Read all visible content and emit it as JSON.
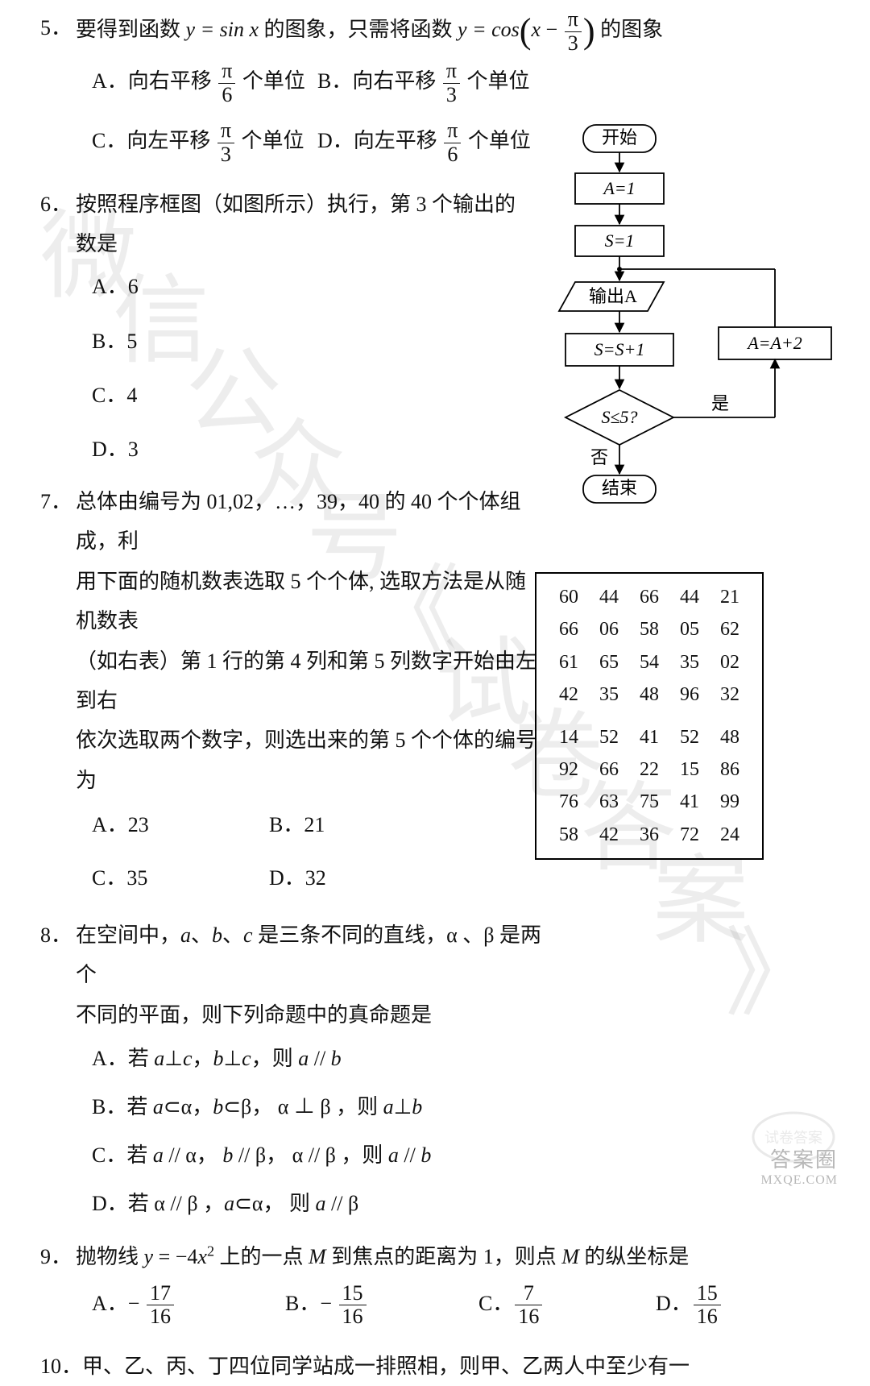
{
  "q5": {
    "num": "5．",
    "stem_a": "要得到函数 ",
    "stem_b": " 的图象，只需将函数 ",
    "stem_c": " 的图象",
    "eq1_a": "y",
    "eq1_b": " = sin ",
    "eq1_c": "x",
    "eq2_a": "y",
    "eq2_b": " = cos",
    "eq2_x": "x",
    "eq2_minus": " − ",
    "pi": "π",
    "three": "3",
    "six": "6",
    "A_pre": "A．向右平移 ",
    "A_post": " 个单位",
    "B_pre": "B．向右平移 ",
    "B_post": " 个单位",
    "C_pre": "C．向左平移 ",
    "C_post": " 个单位",
    "D_pre": "D．向左平移 ",
    "D_post": " 个单位"
  },
  "q6": {
    "num": "6．",
    "stem": "按照程序框图（如图所示）执行，第 3 个输出的数是",
    "A": "A．6",
    "B": "B．5",
    "C": "C．4",
    "D": "D．3"
  },
  "q7": {
    "num": "7．",
    "l1": "总体由编号为 01,02，…，39，40 的 40 个个体组成，利",
    "l2": "用下面的随机数表选取 5 个个体, 选取方法是从随机数表",
    "l3": "（如右表）第 1 行的第 4 列和第 5 列数字开始由左到右",
    "l4": "依次选取两个数字，则选出来的第 5 个个体的编号为",
    "A": "A．23",
    "B": "B．21",
    "C": "C．35",
    "D": "D．32"
  },
  "q8": {
    "num": "8．",
    "l1_a": "在空间中，",
    "l1_b": "、",
    "l1_c": "、",
    "l1_d": " 是三条不同的直线，α 、β 是两个",
    "a": "a",
    "b": "b",
    "c": "c",
    "l2": "不同的平面，则下列命题中的真命题是",
    "A_a": "A．若 ",
    "A_b": "⊥",
    "A_c": "，",
    "A_d": "⊥",
    "A_e": "，则 ",
    "A_f": " // ",
    "B_a": "B．若 ",
    "B_b": "⊂α，",
    "B_c": "⊂β， α ⊥ β ，则 ",
    "B_d": "⊥",
    "C_a": "C．若 ",
    "C_b": " // α， ",
    "C_c": " // β， α // β ，则 ",
    "C_d": " // ",
    "D_a": "D．若 α // β ，",
    "D_b": "⊂α， 则 ",
    "D_c": " // β"
  },
  "q9": {
    "num": "9．",
    "stem_a": "抛物线 ",
    "stem_b": " 上的一点 ",
    "stem_c": " 到焦点的距离为 1，则点 ",
    "stem_d": " 的纵坐标是",
    "y": "y",
    "eq": " = −4",
    "x": "x",
    "sq": "2",
    "M": "M",
    "A": "A．",
    "B": "B．",
    "C": "C．",
    "D": "D．",
    "n17": "17",
    "n15": "15",
    "n7": "7",
    "n16": "16",
    "neg": "− "
  },
  "q10": {
    "num": "10．",
    "stem": "甲、乙、丙、丁四位同学站成一排照相，则甲、乙两人中至少有一"
  },
  "flow": {
    "start": "开始",
    "a1": "A=1",
    "s1": "S=1",
    "out": "输出A",
    "ss1": "S=S+1",
    "aa2": "A=A+2",
    "cond": "S≤5?",
    "yes": "是",
    "no": "否",
    "end": "结束",
    "stroke": "#000000",
    "fill": "#ffffff",
    "font": "22"
  },
  "table": {
    "rows_top": [
      [
        "60",
        "44",
        "66",
        "44",
        "21"
      ],
      [
        "66",
        "06",
        "58",
        "05",
        "62"
      ],
      [
        "61",
        "65",
        "54",
        "35",
        "02"
      ],
      [
        "42",
        "35",
        "48",
        "96",
        "32"
      ]
    ],
    "rows_bot": [
      [
        "14",
        "52",
        "41",
        "52",
        "48"
      ],
      [
        "92",
        "66",
        "22",
        "15",
        "86"
      ],
      [
        "76",
        "63",
        "75",
        "41",
        "99"
      ],
      [
        "58",
        "42",
        "36",
        "72",
        "24"
      ]
    ]
  },
  "watermarks": {
    "a": "微",
    "b": "信",
    "c": "公",
    "d": "众",
    "e": "号",
    "f": "《",
    "g": "试",
    "h": "卷",
    "i": "答",
    "j": "案",
    "k": "》"
  },
  "footer": {
    "brand": "答案圈",
    "seal": "试卷答案",
    "url": "MXQE.COM"
  }
}
